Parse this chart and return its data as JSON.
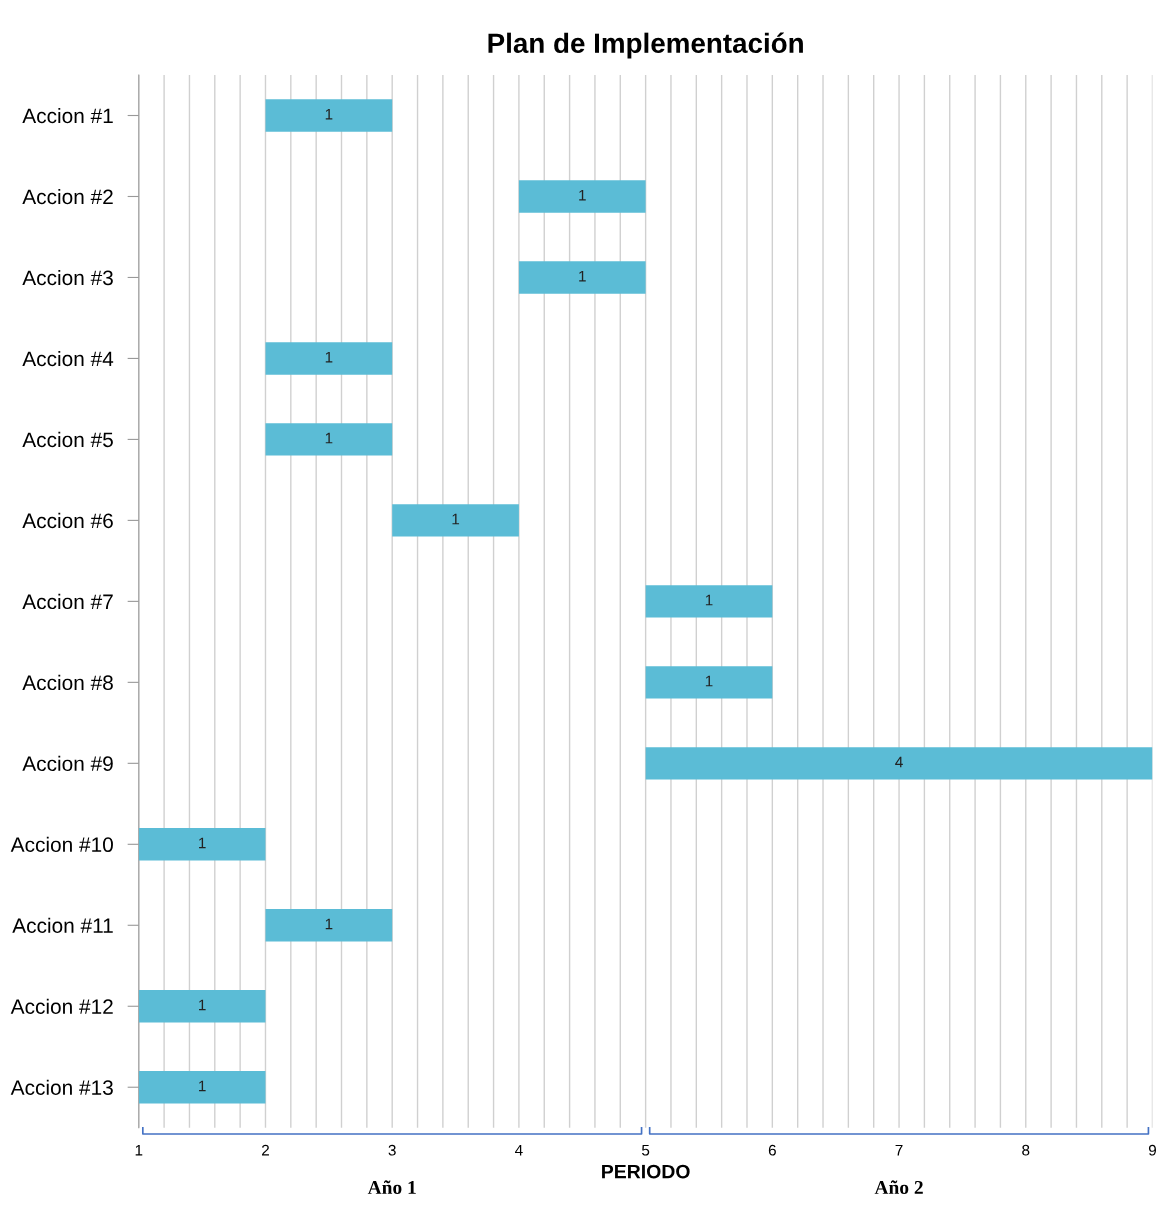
{
  "chart_data": {
    "type": "bar",
    "orientation": "horizontal",
    "title": "Plan de Implementación",
    "xlabel": "PERIODO",
    "categories": [
      "Accion #1",
      "Accion #2",
      "Accion #3",
      "Accion #4",
      "Accion #5",
      "Accion #6",
      "Accion #7",
      "Accion #8",
      "Accion #9",
      "Accion #10",
      "Accion #11",
      "Accion #12",
      "Accion #13"
    ],
    "base": [
      2,
      4,
      4,
      2,
      2,
      3,
      5,
      5,
      5,
      1,
      2,
      1,
      1
    ],
    "values": [
      1,
      1,
      1,
      1,
      1,
      1,
      1,
      1,
      4,
      1,
      1,
      1,
      1
    ],
    "color": "#5bbcd6",
    "data_labels": true,
    "grid": "x",
    "xlim": [
      1,
      9
    ],
    "xticks": [
      1,
      {
        "value": 1.2,
        "label": null
      },
      {
        "value": 1.4,
        "label": null
      },
      {
        "value": 1.6,
        "label": null
      },
      {
        "value": 1.8,
        "label": null
      },
      2,
      {
        "value": 2.2,
        "label": null
      },
      {
        "value": 2.4,
        "label": null
      },
      {
        "value": 2.6,
        "label": null
      },
      {
        "value": 2.8,
        "label": null
      },
      3,
      {
        "value": 3.2,
        "label": null
      },
      {
        "value": 3.4,
        "label": null
      },
      {
        "value": 3.6,
        "label": null
      },
      {
        "value": 3.8,
        "label": null
      },
      4,
      {
        "value": 4.2,
        "label": null
      },
      {
        "value": 4.4,
        "label": null
      },
      {
        "value": 4.6,
        "label": null
      },
      {
        "value": 4.8,
        "label": null
      },
      5,
      {
        "value": 5.2,
        "label": null
      },
      {
        "value": 5.4,
        "label": null
      },
      {
        "value": 5.6,
        "label": null
      },
      {
        "value": 5.8,
        "label": null
      },
      6,
      {
        "value": 6.2,
        "label": null
      },
      {
        "value": 6.4,
        "label": null
      },
      {
        "value": 6.6,
        "label": null
      },
      {
        "value": 6.8,
        "label": null
      },
      7,
      {
        "value": 7.2,
        "label": null
      },
      {
        "value": 7.4,
        "label": null
      },
      {
        "value": 7.6,
        "label": null
      },
      {
        "value": 7.8,
        "label": null
      },
      8,
      {
        "value": 8.2,
        "label": null
      },
      {
        "value": 8.4,
        "label": null
      },
      {
        "value": 8.6,
        "label": null
      },
      {
        "value": 8.8,
        "label": null
      },
      9
    ],
    "annotations": [
      "Año 1",
      "Año 2"
    ]
  }
}
